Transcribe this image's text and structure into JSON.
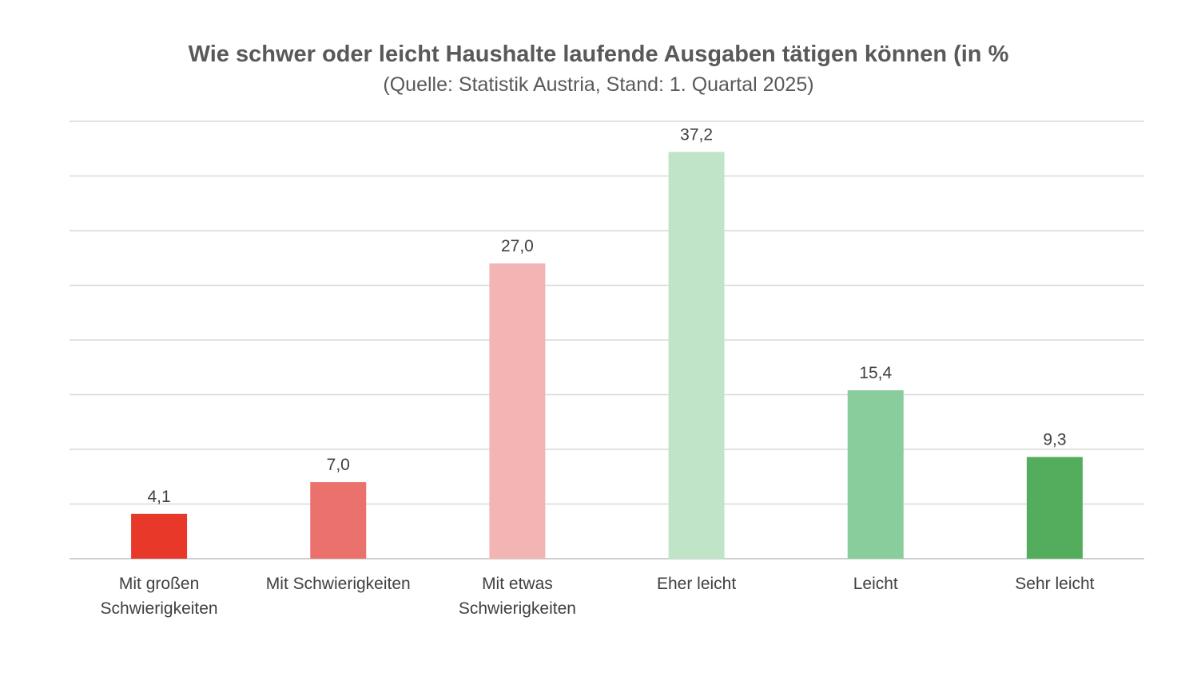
{
  "chart_data": {
    "type": "bar",
    "title": "Wie schwer oder leicht Haushalte laufende Ausgaben tätigen können (in %",
    "subtitle": "(Quelle: Statistik Austria, Stand: 1. Quartal 2025)",
    "categories": [
      [
        "Mit großen",
        "Schwierigkeiten"
      ],
      [
        "Mit Schwierigkeiten"
      ],
      [
        "Mit etwas",
        "Schwierigkeiten"
      ],
      [
        "Eher leicht"
      ],
      [
        "Leicht"
      ],
      [
        "Sehr leicht"
      ]
    ],
    "values": [
      4.1,
      7.0,
      27.0,
      37.2,
      15.4,
      9.3
    ],
    "data_labels": [
      "4,1",
      "7,0",
      "27,0",
      "37,2",
      "15,4",
      "9,3"
    ],
    "colors": [
      "#e8382a",
      "#eb716d",
      "#f3b5b4",
      "#bfe4c8",
      "#88cd9b",
      "#53ad5d"
    ],
    "ylim": [
      0,
      40
    ],
    "grid": true,
    "legend": "none"
  }
}
